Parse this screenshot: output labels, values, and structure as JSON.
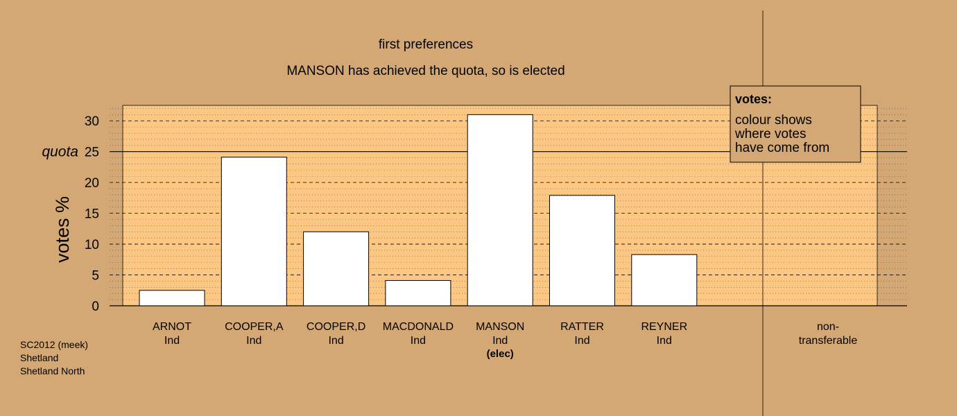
{
  "chart_data": {
    "type": "bar",
    "title": "first preferences",
    "subtitle": "MANSON has achieved the quota, so is elected",
    "ylabel": "votes %",
    "ylim": [
      0,
      32.5
    ],
    "yticks": [
      "0",
      "5",
      "10",
      "15",
      "20",
      "25",
      "30"
    ],
    "quota_label": "quota",
    "quota": 25,
    "categories": [
      {
        "name": "ARNOT",
        "party": "Ind",
        "note": ""
      },
      {
        "name": "COOPER,A",
        "party": "Ind",
        "note": ""
      },
      {
        "name": "COOPER,D",
        "party": "Ind",
        "note": ""
      },
      {
        "name": "MACDONALD",
        "party": "Ind",
        "note": ""
      },
      {
        "name": "MANSON",
        "party": "Ind",
        "note": "(elec)"
      },
      {
        "name": "RATTER",
        "party": "Ind",
        "note": ""
      },
      {
        "name": "REYNER",
        "party": "Ind",
        "note": ""
      }
    ],
    "values": [
      2.5,
      24.1,
      12.0,
      4.1,
      31.0,
      17.9,
      8.3
    ],
    "nontransferable": {
      "line1": "non-",
      "line2": "transferable",
      "value": 0
    },
    "legend": {
      "title": "votes:",
      "lines": [
        "colour shows",
        "where votes",
        "have come from"
      ]
    },
    "grid": true
  },
  "footer": {
    "lines": [
      "SC2012 (meek)",
      "Shetland",
      "Shetland North"
    ]
  },
  "colors": {
    "background": "#d4a874",
    "plot": "#fcc683",
    "bar": "#ffffff",
    "line": "#000000"
  }
}
